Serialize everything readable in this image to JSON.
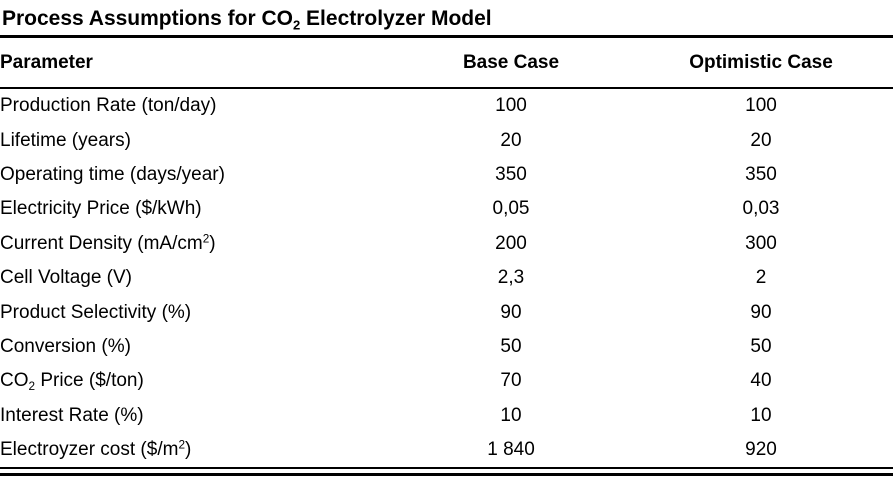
{
  "table": {
    "title": "Process Assumptions for CO_{2} Electrolyzer Model",
    "columns": [
      {
        "key": "parameter",
        "label": "Parameter"
      },
      {
        "key": "base_case",
        "label": "Base Case"
      },
      {
        "key": "optimistic_case",
        "label": "Optimistic Case"
      }
    ],
    "rows": [
      {
        "parameter": "Production Rate (ton/day)",
        "base_case": "100",
        "optimistic_case": "100"
      },
      {
        "parameter": "Lifetime (years)",
        "base_case": "20",
        "optimistic_case": "20"
      },
      {
        "parameter": "Operating time (days/year)",
        "base_case": "350",
        "optimistic_case": "350"
      },
      {
        "parameter": "Electricity Price ($/kWh)",
        "base_case": "0,05",
        "optimistic_case": "0,03"
      },
      {
        "parameter": "Current Density (mA/cm^{2})",
        "base_case": "200",
        "optimistic_case": "300"
      },
      {
        "parameter": "Cell Voltage (V)",
        "base_case": "2,3",
        "optimistic_case": "2"
      },
      {
        "parameter": "Product Selectivity (%)",
        "base_case": "90",
        "optimistic_case": "90"
      },
      {
        "parameter": "Conversion (%)",
        "base_case": "50",
        "optimistic_case": "50"
      },
      {
        "parameter": "CO_{2} Price ($/ton)",
        "base_case": "70",
        "optimistic_case": "40"
      },
      {
        "parameter": "Interest Rate (%)",
        "base_case": "10",
        "optimistic_case": "10"
      },
      {
        "parameter": "Electroyzer cost ($/m^{2})",
        "base_case": "1 840",
        "optimistic_case": "920"
      }
    ]
  },
  "colors": {
    "text": "#000000",
    "background": "#ffffff",
    "rule": "#000000"
  }
}
